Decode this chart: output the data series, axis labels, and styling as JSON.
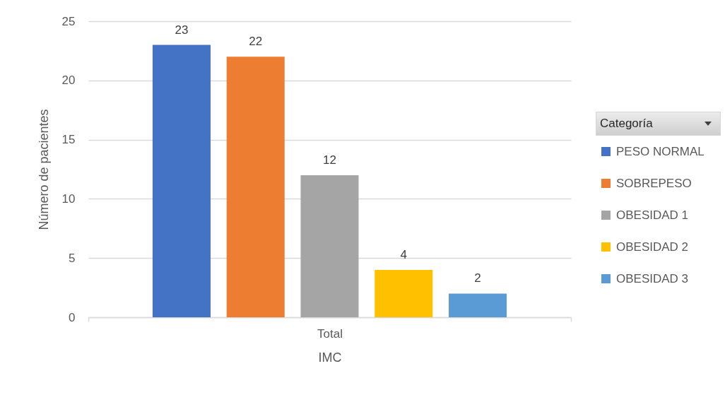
{
  "chart_data": {
    "type": "bar",
    "categories": [
      "Total"
    ],
    "xlabel": "IMC",
    "ylabel": "Número de pacientes",
    "legend_title": "Categoría",
    "series": [
      {
        "name": "PESO NORMAL",
        "color": "#4472c4",
        "values": [
          23
        ]
      },
      {
        "name": "SOBREPESO",
        "color": "#ed7d31",
        "values": [
          22
        ]
      },
      {
        "name": "OBESIDAD 1",
        "color": "#a5a5a5",
        "values": [
          12
        ]
      },
      {
        "name": "OBESIDAD 2",
        "color": "#ffc000",
        "values": [
          4
        ]
      },
      {
        "name": "OBESIDAD 3",
        "color": "#5b9bd5",
        "values": [
          2
        ]
      }
    ],
    "ylim": [
      0,
      25
    ],
    "yticks": [
      0,
      5,
      10,
      15,
      20,
      25
    ],
    "grid": "y",
    "legend": "right",
    "data_labels": true
  }
}
